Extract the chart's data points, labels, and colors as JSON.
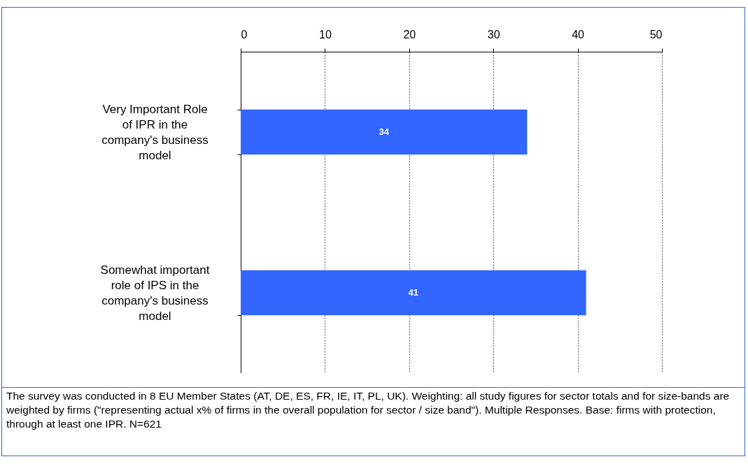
{
  "chart_data": {
    "type": "bar",
    "orientation": "horizontal",
    "categories": [
      "Very Important Role of IPR in the company's business model",
      "Somewhat important role of IPS in the company's business model"
    ],
    "values": [
      34,
      41
    ],
    "color": "#3366ff",
    "data_labels": true,
    "xlim": [
      0,
      50
    ],
    "xticks": [
      0,
      10,
      20,
      30,
      40,
      50
    ],
    "grid": "x",
    "annotations": [
      "The survey was conducted in 8 EU Member States (AT, DE, ES, FR, IE, IT, PL, UK). Weighting: all study figures for sector totals and for size-bands are weighted by firms (\"representing actual x% of firms in the overall population for sector / size band\"). Multiple Responses. Base: firms with protection, through at least one IPR. N=621"
    ]
  }
}
